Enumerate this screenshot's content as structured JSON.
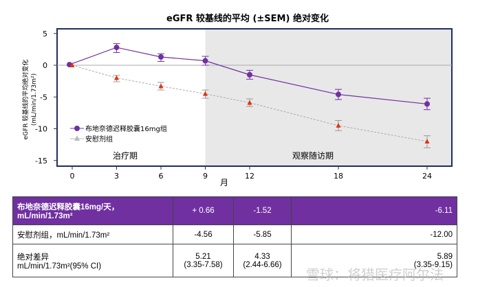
{
  "chart_data": {
    "type": "line",
    "title": "eGFR 较基线的平均 (±SEM) 绝对变化",
    "ylabel": "eGFR 较基线的平均绝对变化",
    "ylabel_unit": "(mL/min/1.73m²)",
    "xlabel": "月",
    "ylim": [
      -15.5,
      5.5
    ],
    "yticks": [
      5,
      0,
      -5,
      -10,
      -15
    ],
    "xticks": [
      0,
      3,
      6,
      9,
      12,
      18,
      24
    ],
    "period_labels": {
      "treatment": "治疗期",
      "followup": "观察随访期"
    },
    "shaded_from_month": 9,
    "legend_position": "left",
    "series": [
      {
        "name": "布地奈德迟释胶囊16mg组",
        "color": "#7030a0",
        "marker": "circle",
        "x": [
          0,
          3,
          6,
          9,
          12,
          18,
          24
        ],
        "y": [
          0.1,
          2.8,
          1.3,
          0.7,
          -1.5,
          -4.6,
          -6.1
        ],
        "err_low": [
          0.1,
          2.0,
          0.6,
          0.0,
          -2.2,
          -5.4,
          -7.0
        ],
        "err_high": [
          0.1,
          3.4,
          1.8,
          1.4,
          -0.8,
          -3.8,
          -5.2
        ]
      },
      {
        "name": "安慰剂组",
        "color": "#aaaaaa",
        "marker_color": "#e53010",
        "marker": "triangle",
        "x": [
          0,
          3,
          6,
          9,
          12,
          18,
          24
        ],
        "y": [
          0,
          -2.0,
          -3.3,
          -4.5,
          -5.9,
          -9.5,
          -12.0
        ],
        "err_low": [
          0,
          -2.6,
          -3.9,
          -5.2,
          -6.5,
          -10.3,
          -13.0
        ],
        "err_high": [
          0,
          -1.6,
          -2.7,
          -3.9,
          -5.3,
          -8.7,
          -11.1
        ]
      }
    ]
  },
  "table": {
    "rows": [
      {
        "label": "布地奈德迟释胶囊16mg/天，",
        "label2": "mL/min/1.73m²",
        "values": [
          "+ 0.66",
          "-1.52",
          "-6.11"
        ]
      },
      {
        "label": "安慰剂组，mL/min/1.73m²",
        "values": [
          "-4.56",
          "-5.85",
          "-12.00"
        ]
      },
      {
        "label": "绝对差异",
        "label2": "mL/min/1.73m²(95% CI)",
        "values": [
          "5.21",
          "4.33",
          "5.89"
        ],
        "values2": [
          "(3.35-7.58)",
          "(2.44-6.66)",
          "(3.35-9.15)"
        ]
      }
    ]
  },
  "watermark": "雪球：将猎医疗阿尔法"
}
